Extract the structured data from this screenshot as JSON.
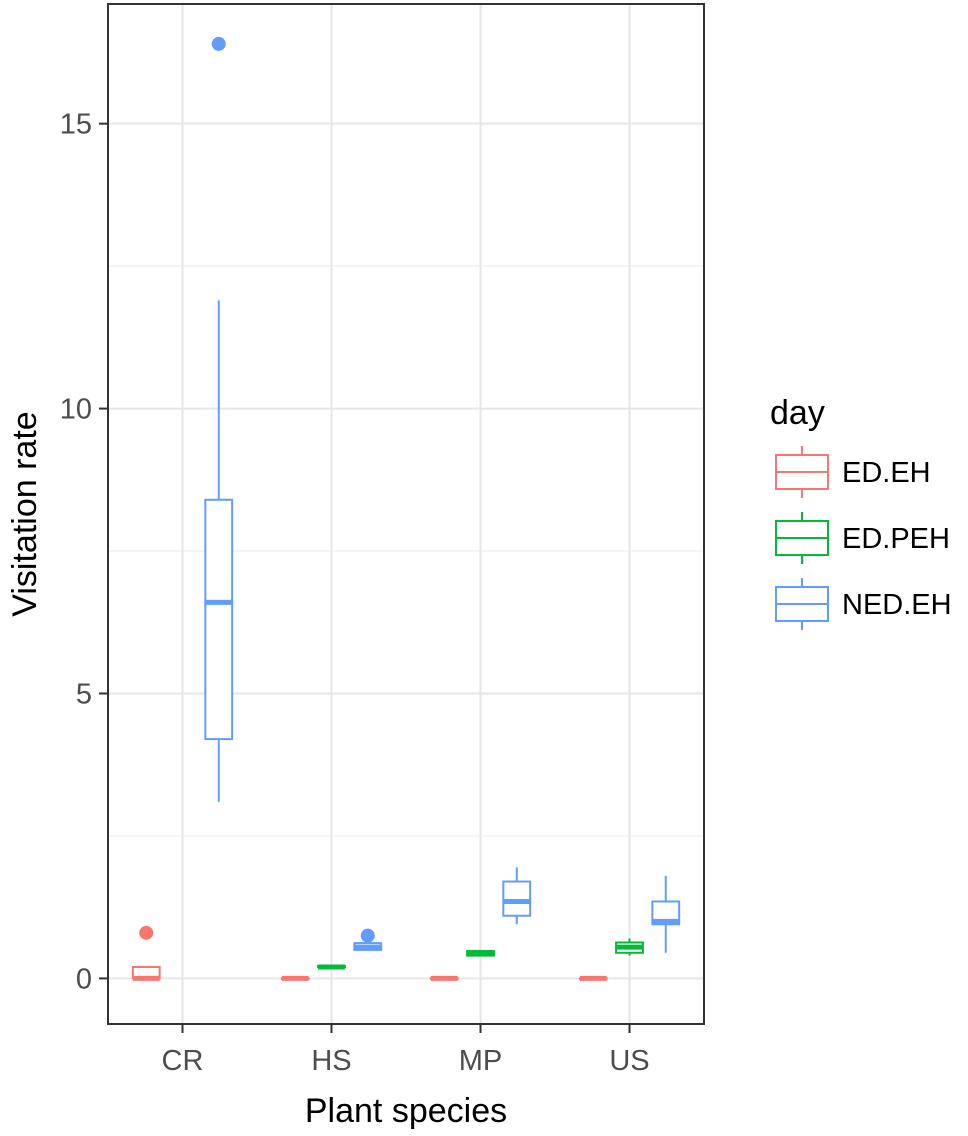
{
  "chart_data": {
    "type": "boxplot",
    "xlabel": "Plant species",
    "ylabel": "Visitation rate",
    "categories": [
      "CR",
      "HS",
      "MP",
      "US"
    ],
    "ylim": [
      -0.8,
      17.1
    ],
    "yticks": [
      0,
      5,
      10,
      15
    ],
    "grid": true,
    "legend": {
      "title": "day",
      "position": "right"
    },
    "series": [
      {
        "name": "ED.EH",
        "color": "#F8766D",
        "boxes": [
          {
            "category": "CR",
            "whisker_low": 0,
            "q1": 0,
            "median": 0,
            "q3": 0.2,
            "whisker_high": 0.2,
            "outliers": [
              0.8
            ]
          },
          {
            "category": "HS",
            "whisker_low": 0,
            "q1": 0,
            "median": 0,
            "q3": 0,
            "whisker_high": 0,
            "outliers": []
          },
          {
            "category": "MP",
            "whisker_low": 0,
            "q1": 0,
            "median": 0,
            "q3": 0,
            "whisker_high": 0,
            "outliers": []
          },
          {
            "category": "US",
            "whisker_low": 0,
            "q1": 0,
            "median": 0,
            "q3": 0,
            "whisker_high": 0,
            "outliers": []
          }
        ]
      },
      {
        "name": "ED.PEH",
        "color": "#00BA38",
        "boxes": [
          {
            "category": "HS",
            "whisker_low": 0.2,
            "q1": 0.2,
            "median": 0.2,
            "q3": 0.22,
            "whisker_high": 0.22,
            "outliers": []
          },
          {
            "category": "MP",
            "whisker_low": 0.4,
            "q1": 0.4,
            "median": 0.45,
            "q3": 0.48,
            "whisker_high": 0.5,
            "outliers": []
          },
          {
            "category": "US",
            "whisker_low": 0.4,
            "q1": 0.45,
            "median": 0.55,
            "q3": 0.63,
            "whisker_high": 0.7,
            "outliers": []
          }
        ]
      },
      {
        "name": "NED.EH",
        "color": "#619CFF",
        "boxes": [
          {
            "category": "CR",
            "whisker_low": 3.1,
            "q1": 4.2,
            "median": 6.6,
            "q3": 8.4,
            "whisker_high": 11.9,
            "outliers": [
              16.4
            ]
          },
          {
            "category": "HS",
            "whisker_low": 0.5,
            "q1": 0.5,
            "median": 0.55,
            "q3": 0.62,
            "whisker_high": 0.65,
            "outliers": [
              0.75
            ]
          },
          {
            "category": "MP",
            "whisker_low": 0.95,
            "q1": 1.1,
            "median": 1.35,
            "q3": 1.7,
            "whisker_high": 1.95,
            "outliers": []
          },
          {
            "category": "US",
            "whisker_low": 0.45,
            "q1": 0.95,
            "median": 1.0,
            "q3": 1.35,
            "whisker_high": 1.8,
            "outliers": []
          }
        ]
      }
    ]
  }
}
